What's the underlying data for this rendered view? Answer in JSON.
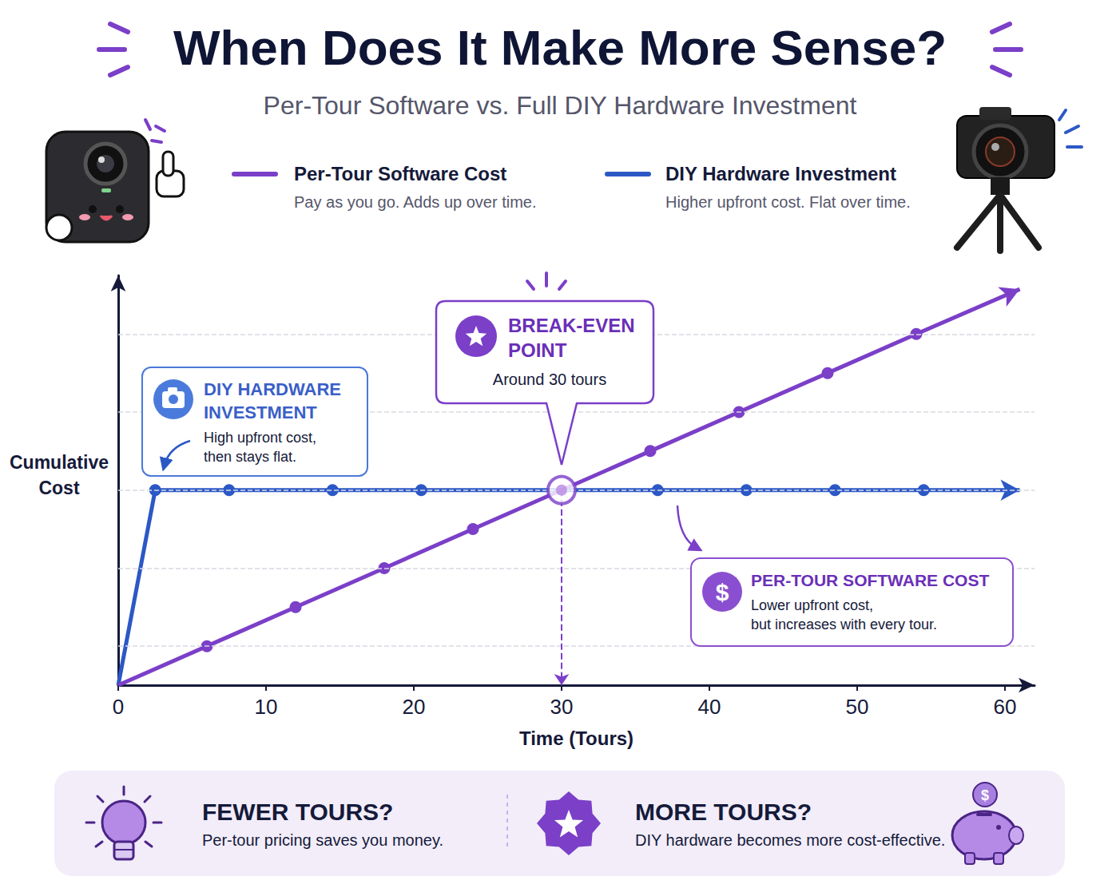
{
  "chart_data": {
    "type": "line",
    "title": "When Does It Make More Sense?",
    "subtitle": "Per-Tour Software vs. Full DIY Hardware Investment",
    "x_label": "Time (Tours)",
    "y_label": "Cumulative Cost",
    "xlim": [
      0,
      62
    ],
    "xticks": [
      0,
      10,
      20,
      30,
      40,
      50,
      60
    ],
    "ylim": [
      0,
      210
    ],
    "yticks": [
      20,
      60,
      100,
      140,
      180
    ],
    "grid": true,
    "tick_labels": "x",
    "legend": "top",
    "marker": "circle",
    "series": [
      {
        "name": "Per-Tour Software Cost",
        "description": "Pay as you go. Adds up over time.",
        "color": "#7b3fc8",
        "x": [
          0,
          6,
          12,
          18,
          24,
          36,
          42,
          48,
          54,
          61
        ],
        "values": [
          0,
          20,
          40,
          60,
          80,
          120,
          140,
          160,
          180,
          203
        ]
      },
      {
        "name": "DIY Hardware Investment",
        "description": "Higher upfront cost. Flat over time.",
        "color": "#2c58c6",
        "x": [
          0,
          2.5,
          7.5,
          14.5,
          20.5,
          36.5,
          42.5,
          48.5,
          54.5,
          61
        ],
        "values": [
          0,
          100,
          100,
          100,
          100,
          100,
          100,
          100,
          100,
          100
        ]
      }
    ],
    "annotations": {
      "diy": {
        "title": "DIY HARDWARE INVESTMENT",
        "lines": [
          "High upfront cost,",
          "then stays flat."
        ]
      },
      "break_even": {
        "title": "BREAK-EVEN POINT",
        "text": "Around 30 tours",
        "x": 30,
        "y": 100
      },
      "per_tour": {
        "title": "PER-TOUR SOFTWARE COST",
        "icon": "$",
        "lines": [
          "Lower upfront cost,",
          "but increases with every tour."
        ]
      }
    },
    "takeaways": [
      {
        "title": "FEWER TOURS?",
        "text": "Per-tour pricing saves you money."
      },
      {
        "title": "MORE TOURS?",
        "text": "DIY hardware becomes more cost-effective."
      }
    ]
  }
}
